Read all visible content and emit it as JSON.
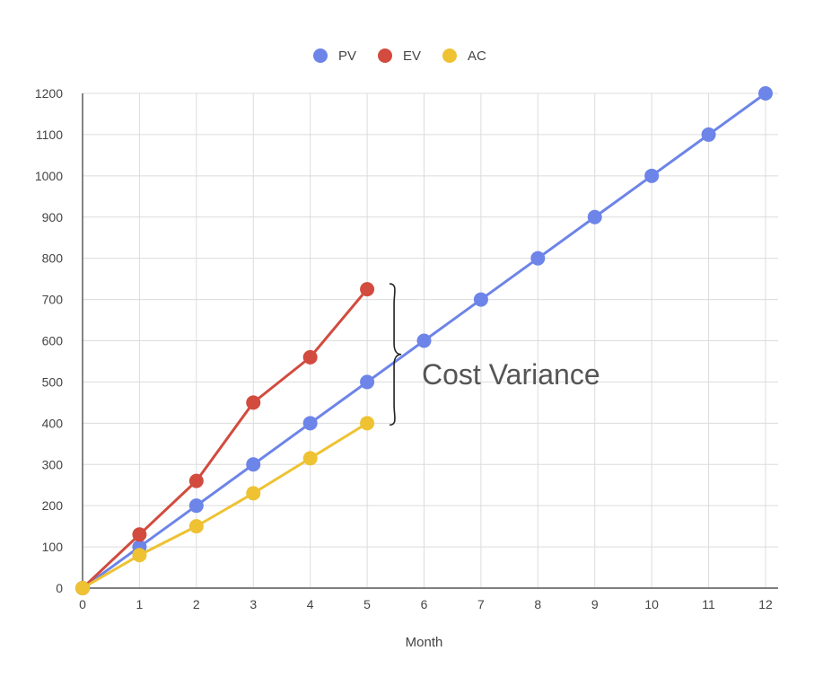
{
  "chart_data": {
    "type": "line",
    "title": "",
    "xlabel": "Month",
    "ylabel": "",
    "x": [
      0,
      1,
      2,
      3,
      4,
      5,
      6,
      7,
      8,
      9,
      10,
      11,
      12
    ],
    "xlim": [
      0,
      12
    ],
    "ylim": [
      0,
      1200
    ],
    "y_ticks": [
      0,
      100,
      200,
      300,
      400,
      500,
      600,
      700,
      800,
      900,
      1000,
      1100,
      1200
    ],
    "grid": true,
    "legend_position": "top",
    "series": [
      {
        "name": "PV",
        "color": "#6d84e8",
        "x": [
          0,
          1,
          2,
          3,
          4,
          5,
          6,
          7,
          8,
          9,
          10,
          11,
          12
        ],
        "values": [
          0,
          100,
          200,
          300,
          400,
          500,
          600,
          700,
          800,
          900,
          1000,
          1100,
          1200
        ]
      },
      {
        "name": "EV",
        "color": "#d24b3e",
        "x": [
          0,
          1,
          2,
          3,
          4,
          5
        ],
        "values": [
          0,
          130,
          260,
          450,
          560,
          725
        ]
      },
      {
        "name": "AC",
        "color": "#eec232",
        "x": [
          0,
          1,
          2,
          3,
          4,
          5
        ],
        "values": [
          0,
          80,
          150,
          230,
          315,
          400
        ]
      }
    ],
    "annotations": [
      {
        "text": "Cost Variance",
        "x": 5.5,
        "y_range": [
          400,
          725
        ]
      }
    ]
  }
}
